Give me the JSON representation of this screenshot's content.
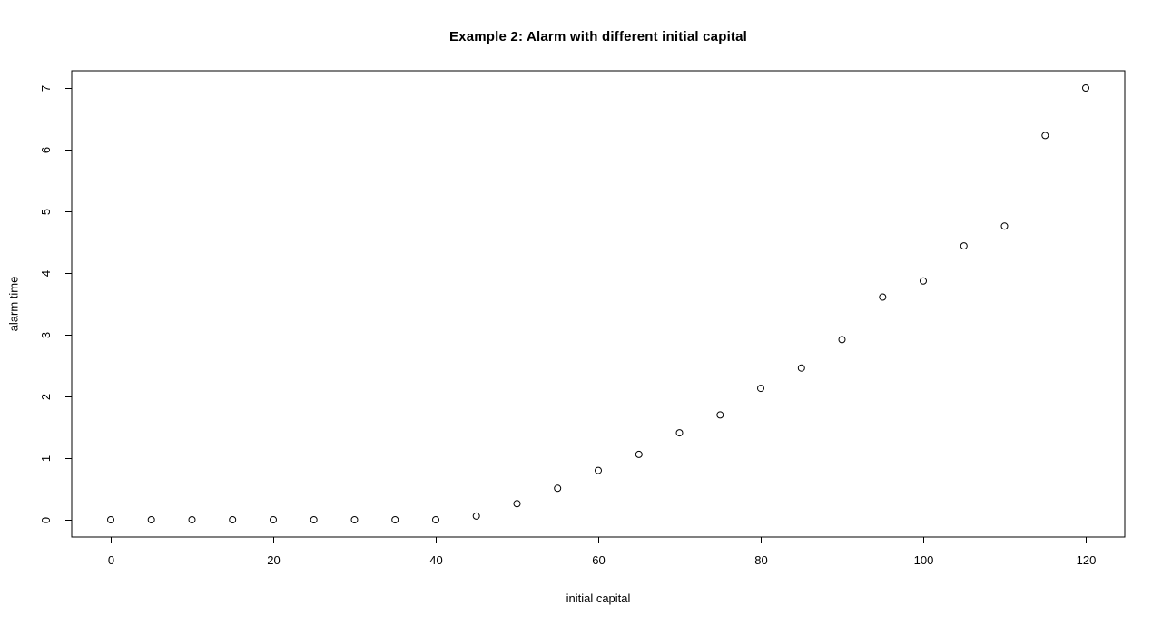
{
  "chart_data": {
    "type": "scatter",
    "title": "Example 2: Alarm with different initial capital",
    "xlabel": "initial capital",
    "ylabel": "alarm time",
    "x": [
      0,
      5,
      10,
      15,
      20,
      25,
      30,
      35,
      40,
      45,
      50,
      55,
      60,
      65,
      70,
      75,
      80,
      85,
      90,
      95,
      100,
      105,
      110,
      115,
      120
    ],
    "y": [
      0,
      0,
      0,
      0,
      0,
      0,
      0,
      0,
      0,
      0.06,
      0.26,
      0.51,
      0.8,
      1.06,
      1.41,
      1.7,
      2.13,
      2.46,
      2.92,
      3.61,
      3.87,
      4.44,
      4.76,
      6.23,
      7.0
    ],
    "x_ticks": [
      0,
      20,
      40,
      60,
      80,
      100,
      120
    ],
    "y_ticks": [
      0,
      1,
      2,
      3,
      4,
      5,
      6,
      7
    ],
    "xlim": [
      -4.8,
      124.8
    ],
    "ylim": [
      -0.28,
      7.28
    ],
    "grid": false,
    "legend": "none",
    "point_style": "open-circle",
    "colors": {
      "background": "#ffffff",
      "axis": "#000000",
      "points": "#000000",
      "text": "#000000"
    }
  }
}
